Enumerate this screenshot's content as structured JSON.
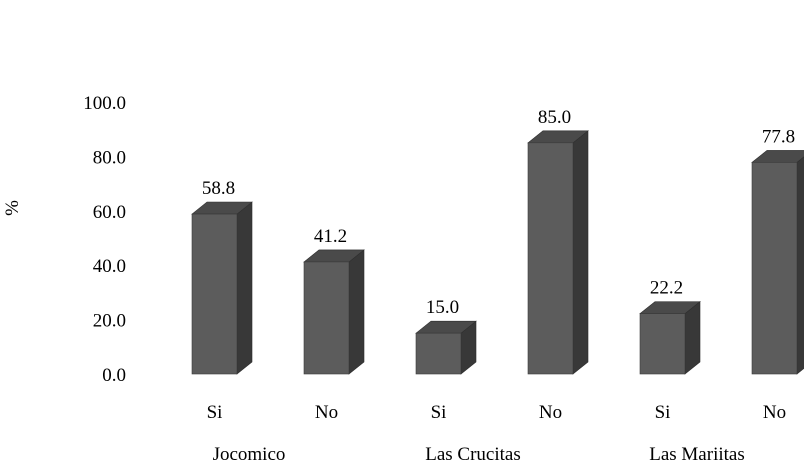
{
  "chart_data": {
    "type": "bar",
    "style": "3d-column",
    "title": "",
    "ylabel": "%",
    "xlabel": "",
    "ylim": [
      0,
      100
    ],
    "yticks": [
      "0.0",
      "20.0",
      "40.0",
      "60.0",
      "80.0",
      "100.0"
    ],
    "groups": [
      {
        "name": "Jocomico",
        "categories": [
          "Si",
          "No"
        ],
        "values": [
          58.8,
          41.2
        ],
        "labels": [
          "58.8",
          "41.2"
        ]
      },
      {
        "name": "Las Crucitas",
        "categories": [
          "Si",
          "No"
        ],
        "values": [
          15.0,
          85.0
        ],
        "labels": [
          "15.0",
          "85.0"
        ]
      },
      {
        "name": "Las Mariitas",
        "categories": [
          "Si",
          "No"
        ],
        "values": [
          22.2,
          77.8
        ],
        "labels": [
          "22.2",
          "77.8"
        ]
      }
    ],
    "grid": false,
    "legend": "none",
    "colors": {
      "front": "#5c5c5c",
      "top": "#4a4a4a",
      "side": "#383838"
    }
  }
}
